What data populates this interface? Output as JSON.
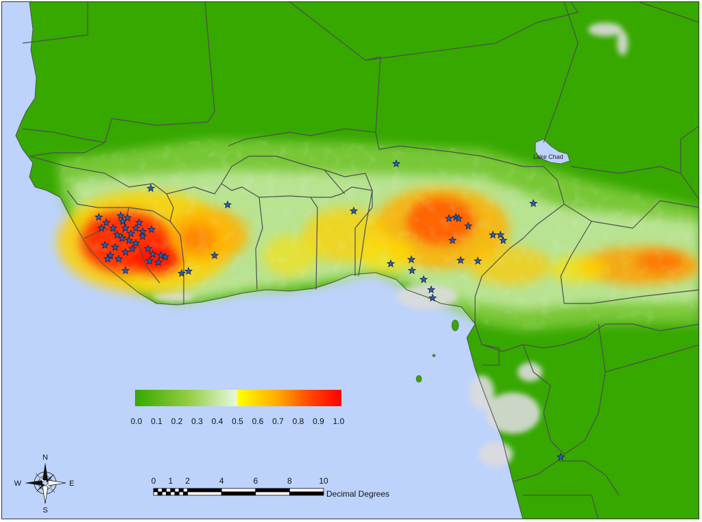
{
  "map": {
    "water_label": "Lake Chad",
    "colors": {
      "ocean": "#bdd3fb",
      "land_green": "#36a800",
      "border": "#4d4d4d",
      "marker": "#2b5fb4",
      "no_data": "#dcdcdc"
    }
  },
  "legend": {
    "ramp_colors": [
      "#36a800",
      "#8fcc3c",
      "#d6f0c0",
      "#ffff00",
      "#ffa500",
      "#ff4500",
      "#ff0000"
    ],
    "ticks": [
      "0.0",
      "0.1",
      "0.2",
      "0.3",
      "0.4",
      "0.5",
      "0.6",
      "0.7",
      "0.8",
      "0.9",
      "1.0"
    ]
  },
  "scalebar": {
    "ticks": [
      "0",
      "1",
      "2",
      "4",
      "6",
      "8",
      "10"
    ],
    "unit": "Decimal Degrees"
  },
  "compass": {
    "north": "N",
    "south": "S",
    "east": "E",
    "west": "W"
  }
}
